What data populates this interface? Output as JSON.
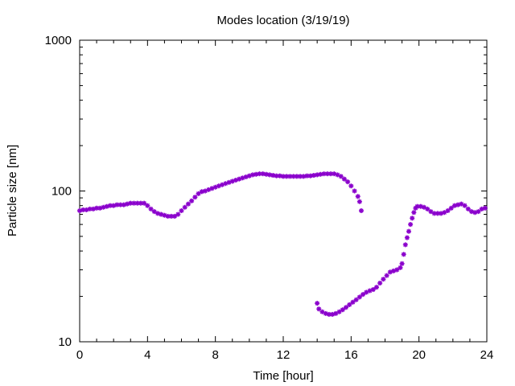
{
  "chart_data": {
    "type": "scatter",
    "title": "Modes location (3/19/19)",
    "xlabel": "Time [hour]",
    "ylabel": "Particle size [nm]",
    "xlim": [
      0,
      24
    ],
    "ylim": [
      10,
      1000
    ],
    "yscale": "log",
    "x_ticks": [
      0,
      4,
      8,
      12,
      16,
      20,
      24
    ],
    "y_ticks": [
      10,
      100,
      1000
    ],
    "grid": false,
    "marker_color": "#8a00cc",
    "series": [
      {
        "points": [
          [
            0.0,
            74
          ],
          [
            0.2,
            75
          ],
          [
            0.4,
            75
          ],
          [
            0.6,
            76
          ],
          [
            0.8,
            76
          ],
          [
            1.0,
            77
          ],
          [
            1.2,
            77
          ],
          [
            1.4,
            78
          ],
          [
            1.6,
            79
          ],
          [
            1.8,
            80
          ],
          [
            2.0,
            80
          ],
          [
            2.2,
            81
          ],
          [
            2.4,
            81
          ],
          [
            2.6,
            81
          ],
          [
            2.8,
            82
          ],
          [
            3.0,
            83
          ],
          [
            3.2,
            83
          ],
          [
            3.4,
            83
          ],
          [
            3.6,
            83
          ],
          [
            3.8,
            83
          ],
          [
            4.0,
            80
          ],
          [
            4.2,
            76
          ],
          [
            4.4,
            73
          ],
          [
            4.6,
            71
          ],
          [
            4.8,
            70
          ],
          [
            5.0,
            69
          ],
          [
            5.2,
            68
          ],
          [
            5.4,
            68
          ],
          [
            5.6,
            68
          ],
          [
            5.8,
            70
          ],
          [
            6.0,
            74
          ],
          [
            6.2,
            78
          ],
          [
            6.4,
            82
          ],
          [
            6.6,
            86
          ],
          [
            6.8,
            91
          ],
          [
            7.0,
            96
          ],
          [
            7.2,
            99
          ],
          [
            7.4,
            100
          ],
          [
            7.6,
            102
          ],
          [
            7.8,
            104
          ],
          [
            8.0,
            106
          ],
          [
            8.2,
            108
          ],
          [
            8.4,
            110
          ],
          [
            8.6,
            112
          ],
          [
            8.8,
            114
          ],
          [
            9.0,
            116
          ],
          [
            9.2,
            118
          ],
          [
            9.4,
            120
          ],
          [
            9.6,
            122
          ],
          [
            9.8,
            124
          ],
          [
            10.0,
            126
          ],
          [
            10.2,
            128
          ],
          [
            10.4,
            129
          ],
          [
            10.6,
            130
          ],
          [
            10.8,
            130
          ],
          [
            11.0,
            129
          ],
          [
            11.2,
            128
          ],
          [
            11.4,
            127
          ],
          [
            11.6,
            126
          ],
          [
            11.8,
            126
          ],
          [
            12.0,
            125
          ],
          [
            12.2,
            125
          ],
          [
            12.4,
            125
          ],
          [
            12.6,
            125
          ],
          [
            12.8,
            125
          ],
          [
            13.0,
            125
          ],
          [
            13.2,
            125
          ],
          [
            13.4,
            126
          ],
          [
            13.6,
            126
          ],
          [
            13.8,
            127
          ],
          [
            14.0,
            128
          ],
          [
            14.2,
            129
          ],
          [
            14.4,
            130
          ],
          [
            14.6,
            130
          ],
          [
            14.8,
            130
          ],
          [
            15.0,
            130
          ],
          [
            15.2,
            128
          ],
          [
            15.4,
            125
          ],
          [
            15.6,
            120
          ],
          [
            15.8,
            115
          ],
          [
            16.0,
            108
          ],
          [
            16.2,
            100
          ],
          [
            16.4,
            92
          ],
          [
            16.5,
            85
          ],
          [
            16.6,
            74
          ],
          [
            14.0,
            18
          ],
          [
            14.1,
            16.5
          ],
          [
            14.3,
            15.8
          ],
          [
            14.5,
            15.4
          ],
          [
            14.7,
            15.2
          ],
          [
            14.9,
            15.2
          ],
          [
            15.1,
            15.4
          ],
          [
            15.3,
            15.8
          ],
          [
            15.5,
            16.3
          ],
          [
            15.7,
            16.9
          ],
          [
            15.9,
            17.6
          ],
          [
            16.1,
            18.3
          ],
          [
            16.3,
            19.0
          ],
          [
            16.5,
            19.8
          ],
          [
            16.7,
            20.6
          ],
          [
            16.9,
            21.3
          ],
          [
            17.1,
            21.8
          ],
          [
            17.3,
            22.2
          ],
          [
            17.5,
            23.0
          ],
          [
            17.7,
            24.5
          ],
          [
            17.9,
            26.0
          ],
          [
            18.1,
            27.5
          ],
          [
            18.3,
            29.0
          ],
          [
            18.5,
            29.5
          ],
          [
            18.7,
            30.0
          ],
          [
            18.9,
            31.0
          ],
          [
            19.0,
            33.0
          ],
          [
            19.1,
            38.0
          ],
          [
            19.2,
            44.0
          ],
          [
            19.3,
            49.0
          ],
          [
            19.4,
            54.0
          ],
          [
            19.5,
            60.0
          ],
          [
            19.6,
            66.0
          ],
          [
            19.7,
            72.0
          ],
          [
            19.8,
            77.0
          ],
          [
            19.9,
            79.0
          ],
          [
            20.1,
            79.0
          ],
          [
            20.3,
            78.0
          ],
          [
            20.5,
            76.0
          ],
          [
            20.7,
            73.0
          ],
          [
            20.9,
            71.0
          ],
          [
            21.1,
            71.0
          ],
          [
            21.3,
            71.0
          ],
          [
            21.5,
            72.0
          ],
          [
            21.7,
            74.0
          ],
          [
            21.9,
            77.0
          ],
          [
            22.1,
            80.0
          ],
          [
            22.3,
            81.0
          ],
          [
            22.5,
            82.0
          ],
          [
            22.7,
            80.0
          ],
          [
            22.9,
            76.0
          ],
          [
            23.1,
            73.0
          ],
          [
            23.3,
            72.0
          ],
          [
            23.5,
            73.0
          ],
          [
            23.7,
            76.0
          ],
          [
            23.9,
            77.0
          ]
        ]
      }
    ]
  }
}
